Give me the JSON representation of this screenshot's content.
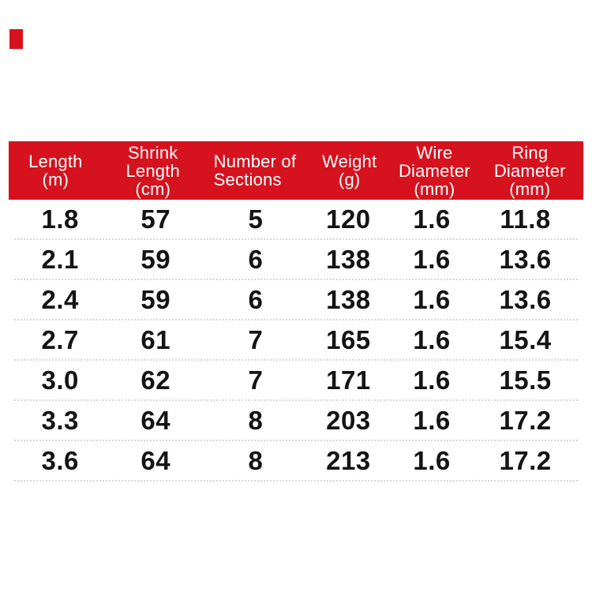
{
  "theme": {
    "background": "#ffffff",
    "header_red": "#d6121f",
    "header_text": "#ffffff",
    "cell_text": "#141414",
    "row_divider": "#d9d9d9"
  },
  "corner_mark": {
    "color": "#d6121f"
  },
  "table": {
    "columns": [
      {
        "id": "length",
        "lines": [
          "Length",
          "(m)"
        ]
      },
      {
        "id": "shrink_length",
        "lines": [
          "Shrink",
          "Length",
          "(cm)"
        ]
      },
      {
        "id": "sections",
        "lines": [
          "Number of",
          "Sections"
        ]
      },
      {
        "id": "weight",
        "lines": [
          "Weight",
          "(g)"
        ]
      },
      {
        "id": "wire_diameter",
        "lines": [
          "Wire",
          "Diameter",
          "(mm)"
        ]
      },
      {
        "id": "ring_diameter",
        "lines": [
          "Ring",
          "Diameter",
          "(mm)"
        ]
      }
    ],
    "rows": [
      [
        "1.8",
        "57",
        "5",
        "120",
        "1.6",
        "11.8"
      ],
      [
        "2.1",
        "59",
        "6",
        "138",
        "1.6",
        "13.6"
      ],
      [
        "2.4",
        "59",
        "6",
        "138",
        "1.6",
        "13.6"
      ],
      [
        "2.7",
        "61",
        "7",
        "165",
        "1.6",
        "15.4"
      ],
      [
        "3.0",
        "62",
        "7",
        "171",
        "1.6",
        "15.5"
      ],
      [
        "3.3",
        "64",
        "8",
        "203",
        "1.6",
        "17.2"
      ],
      [
        "3.6",
        "64",
        "8",
        "213",
        "1.6",
        "17.2"
      ]
    ]
  },
  "chart_data": {
    "type": "table",
    "title": "",
    "columns": [
      "Length (m)",
      "Shrink Length (cm)",
      "Number of Sections",
      "Weight (g)",
      "Wire Diameter (mm)",
      "Ring Diameter (mm)"
    ],
    "rows": [
      [
        1.8,
        57,
        5,
        120,
        1.6,
        11.8
      ],
      [
        2.1,
        59,
        6,
        138,
        1.6,
        13.6
      ],
      [
        2.4,
        59,
        6,
        138,
        1.6,
        13.6
      ],
      [
        2.7,
        61,
        7,
        165,
        1.6,
        15.4
      ],
      [
        3.0,
        62,
        7,
        171,
        1.6,
        15.5
      ],
      [
        3.3,
        64,
        8,
        203,
        1.6,
        17.2
      ],
      [
        3.6,
        64,
        8,
        213,
        1.6,
        17.2
      ]
    ],
    "layout": {
      "header_background": "#d6121f",
      "header_text_color": "#ffffff",
      "grid": "dotted-row-dividers"
    }
  }
}
